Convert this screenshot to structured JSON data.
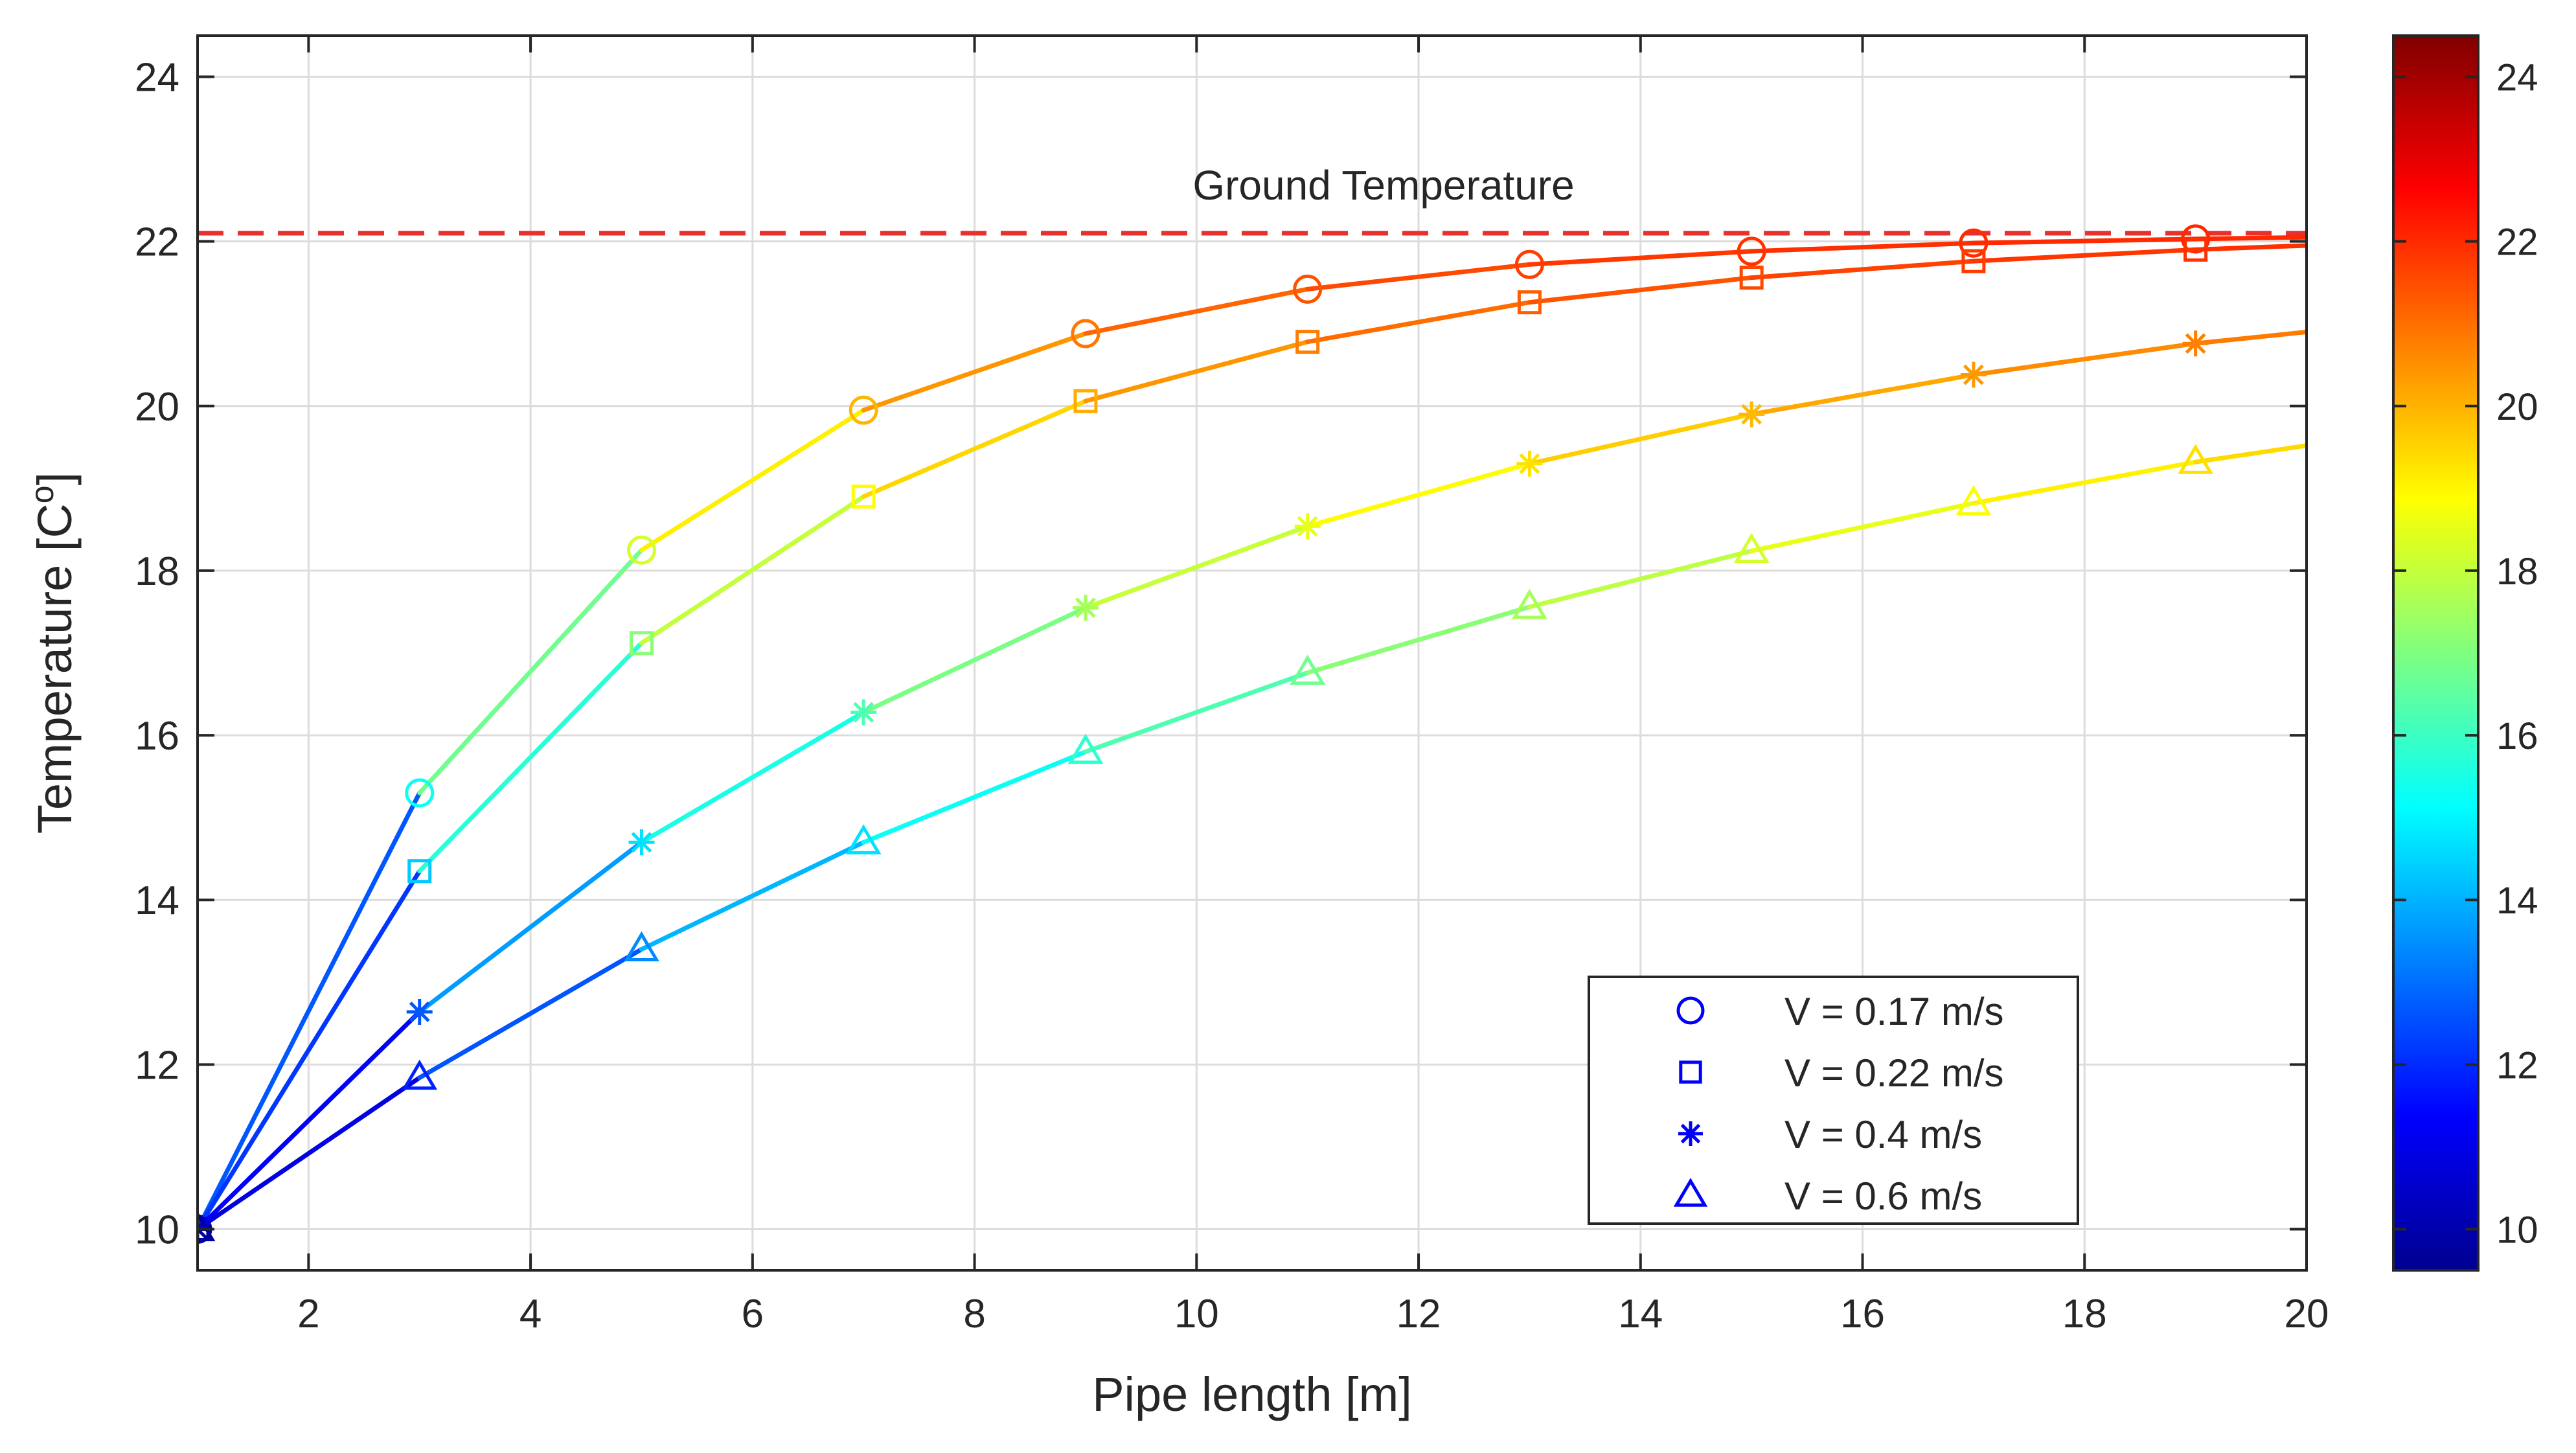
{
  "chart_data": {
    "type": "line",
    "xlabel": "Pipe length [m]",
    "ylabel": "Temperature [C",
    "ylabel_superscript": "o",
    "ylabel_close": "]",
    "xlim": [
      1,
      20
    ],
    "ylim": [
      9.5,
      24.5
    ],
    "xticks": [
      2,
      4,
      6,
      8,
      10,
      12,
      14,
      16,
      18,
      20
    ],
    "yticks": [
      10,
      12,
      14,
      16,
      18,
      20,
      22,
      24
    ],
    "grid": true,
    "color_scale": "jet",
    "colorbar": {
      "range": [
        9.5,
        24.5
      ],
      "ticks": [
        10,
        12,
        14,
        16,
        18,
        20,
        22,
        24
      ]
    },
    "reference_line": {
      "label": "Ground Temperature",
      "y": 22.1,
      "style": "dashed",
      "color": "#e8302d"
    },
    "legend_position": "bottom-right",
    "series": [
      {
        "name": "V = 0.17 m/s",
        "marker": "circle",
        "x": [
          1,
          3,
          5,
          7,
          9,
          11,
          13,
          15,
          17,
          19,
          20
        ],
        "y": [
          10.0,
          15.3,
          18.25,
          19.95,
          20.88,
          21.42,
          21.72,
          21.88,
          21.98,
          22.03,
          22.05
        ]
      },
      {
        "name": "V = 0.22 m/s",
        "marker": "square",
        "x": [
          1,
          3,
          5,
          7,
          9,
          11,
          13,
          15,
          17,
          19,
          20
        ],
        "y": [
          10.0,
          14.35,
          17.12,
          18.9,
          20.06,
          20.78,
          21.26,
          21.56,
          21.76,
          21.9,
          21.95
        ]
      },
      {
        "name": "V = 0.4 m/s",
        "marker": "asterisk",
        "x": [
          1,
          3,
          5,
          7,
          9,
          11,
          13,
          15,
          17,
          19,
          20
        ],
        "y": [
          10.0,
          12.64,
          14.7,
          16.28,
          17.55,
          18.54,
          19.3,
          19.9,
          20.38,
          20.76,
          20.9
        ]
      },
      {
        "name": "V = 0.6 m/s",
        "marker": "triangle",
        "x": [
          1,
          3,
          5,
          7,
          9,
          11,
          13,
          15,
          17,
          19,
          20
        ],
        "y": [
          10.0,
          11.84,
          13.4,
          14.7,
          15.8,
          16.76,
          17.56,
          18.24,
          18.82,
          19.32,
          19.52
        ]
      }
    ]
  }
}
